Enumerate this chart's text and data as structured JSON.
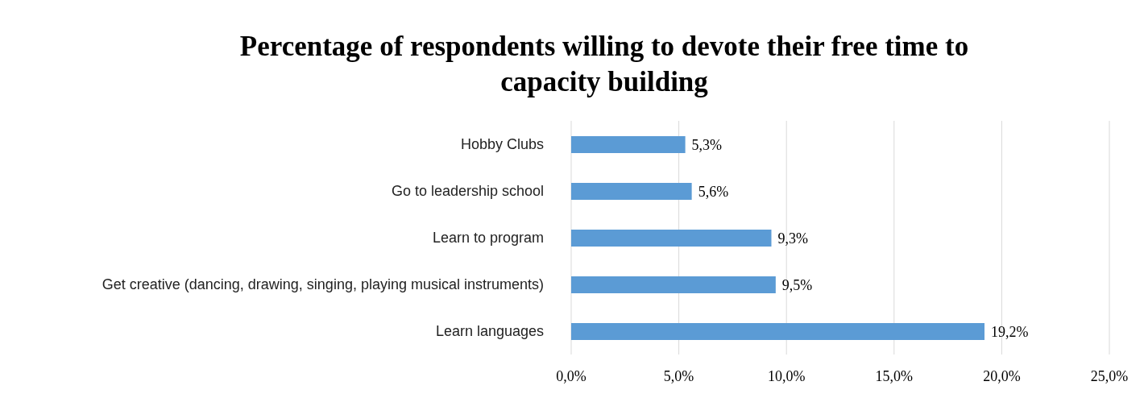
{
  "chart_data": {
    "type": "bar",
    "orientation": "horizontal",
    "title": "Percentage of respondents willing to devote their free time to capacity building",
    "categories": [
      "Hobby Clubs",
      "Go to leadership school",
      "Learn to program",
      "Get creative (dancing, drawing, singing, playing musical instruments)",
      "Learn languages"
    ],
    "values": [
      5.3,
      5.6,
      9.3,
      9.5,
      19.2
    ],
    "value_labels": [
      "5,3%",
      "5,6%",
      "9,3%",
      "9,5%",
      "19,2%"
    ],
    "color": "#5b9bd5",
    "xlim": [
      0,
      25
    ],
    "xticks": [
      {
        "value": 0,
        "label": "0,0%"
      },
      {
        "value": 5,
        "label": "5,0%"
      },
      {
        "value": 10,
        "label": "10,0%"
      },
      {
        "value": 15,
        "label": "15,0%"
      },
      {
        "value": 20,
        "label": "20,0%"
      },
      {
        "value": 25,
        "label": "25,0%"
      }
    ],
    "grid": "x"
  }
}
